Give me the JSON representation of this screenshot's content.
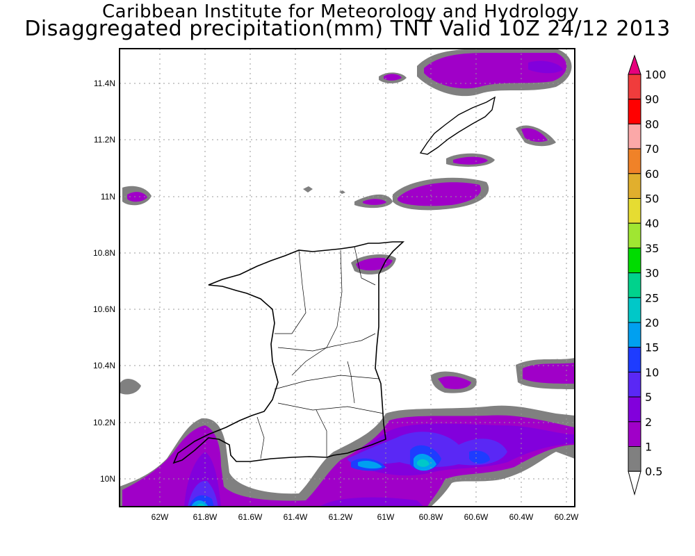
{
  "title": {
    "line1": "Caribbean Institute for Meteorology and Hydrology",
    "line2": "Disaggregated precipitation(mm) TNT Valid 10Z 24/12 2013"
  },
  "axes": {
    "lat_labels": [
      "11.4N",
      "11.2N",
      "11N",
      "10.8N",
      "10.6N",
      "10.4N",
      "10.2N",
      "10N"
    ],
    "lon_labels": [
      "62W",
      "61.8W",
      "61.6W",
      "61.4W",
      "61.2W",
      "61W",
      "60.8W",
      "60.6W",
      "60.4W",
      "60.2W"
    ]
  },
  "colorbar": {
    "labels": [
      "100",
      "90",
      "80",
      "70",
      "60",
      "50",
      "40",
      "35",
      "30",
      "25",
      "20",
      "15",
      "10",
      "5",
      "2",
      "1",
      "0.5"
    ],
    "colors": [
      "#f03c3c",
      "#ff0000",
      "#fba8a8",
      "#f08228",
      "#e1af2d",
      "#e6dc32",
      "#a0e632",
      "#00dc00",
      "#00d28c",
      "#00c8c8",
      "#00a0f0",
      "#1e3cff",
      "#5a28f5",
      "#8200dc",
      "#a000c8",
      "#808080"
    ],
    "over_color": "#e6007d",
    "under_color": "#ffffff"
  }
}
